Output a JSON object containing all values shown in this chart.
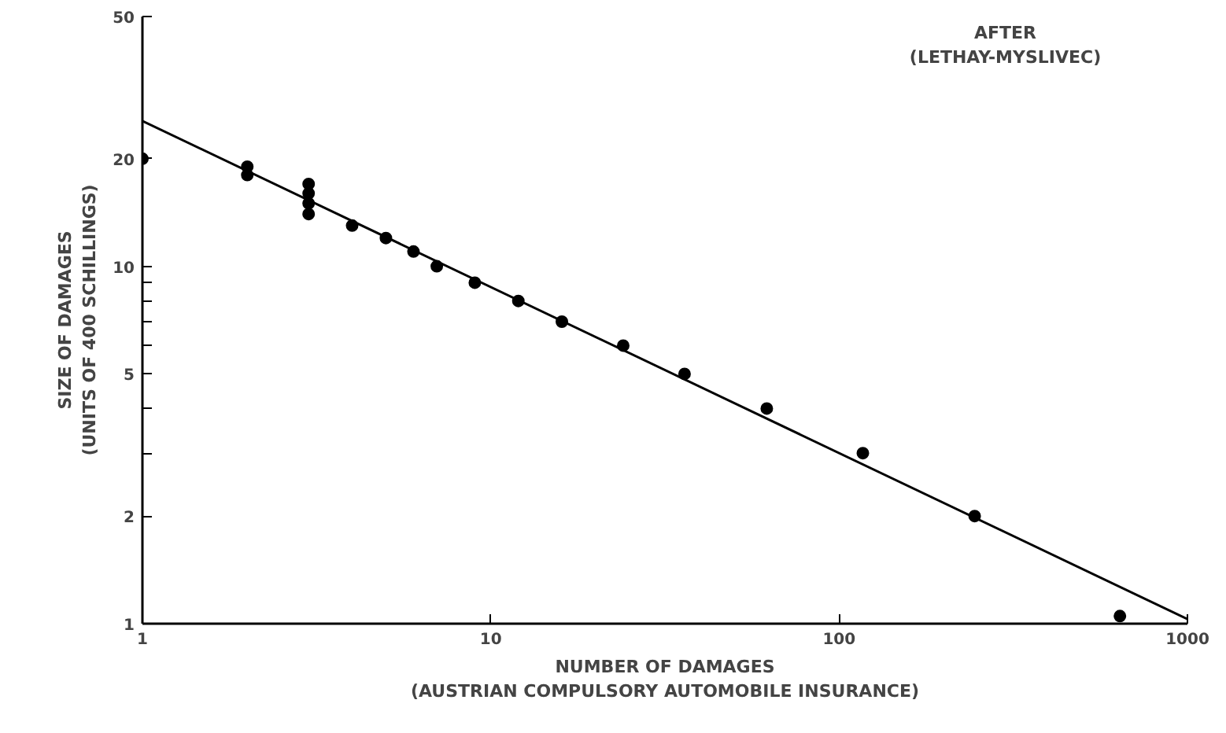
{
  "chart_data": {
    "type": "scatter",
    "xlabel": "NUMBER OF DAMAGES\n(AUSTRIAN COMPULSORY AUTOMOBILE INSURANCE)",
    "ylabel": "SIZE OF DAMAGES\n(UNITS OF 400 SCHILLINGS)",
    "annotations": [
      "AFTER",
      "(LETHAY-MYSLIVEC)"
    ],
    "log": "xy",
    "grid": false,
    "marker": "circle",
    "xlim": [
      1,
      1000
    ],
    "xticks": [
      1,
      10,
      100,
      1000
    ],
    "ylim": [
      1,
      50
    ],
    "yticks": [
      1,
      2,
      {
        "value": 3,
        "label": null
      },
      {
        "value": 4,
        "label": null
      },
      5,
      {
        "value": 6,
        "label": null
      },
      {
        "value": 7,
        "label": null
      },
      {
        "value": 8,
        "label": null
      },
      {
        "value": 9,
        "label": null
      },
      10,
      20,
      50
    ],
    "series": [
      {
        "color": "#000000",
        "x": [
          1,
          2,
          2,
          3,
          3,
          3,
          3,
          4,
          5,
          6,
          7,
          9,
          12,
          16,
          24,
          36,
          62,
          117,
          245,
          640
        ],
        "values": [
          20,
          19,
          18,
          17,
          16,
          15,
          14,
          13,
          12,
          11,
          10,
          9,
          8,
          7,
          6,
          5,
          4,
          3,
          2,
          1.05
        ]
      },
      {
        "type": "line",
        "marker": "none",
        "color": "#000000",
        "x": [
          1,
          1000
        ],
        "values": [
          25.5,
          1.03
        ]
      }
    ]
  }
}
